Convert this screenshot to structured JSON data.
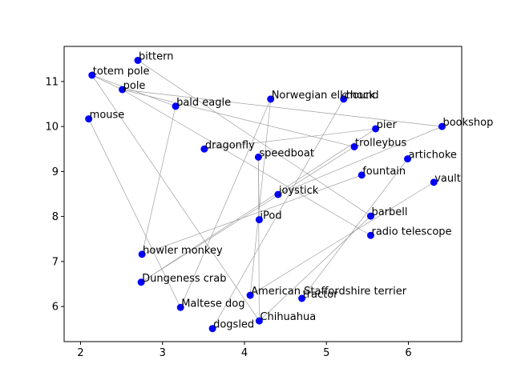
{
  "chart_data": {
    "type": "scatter",
    "title": "",
    "xlabel": "",
    "ylabel": "",
    "xlim": [
      1.8,
      6.65
    ],
    "ylim": [
      5.22,
      11.78
    ],
    "xticks": [
      2,
      3,
      4,
      5,
      6
    ],
    "yticks": [
      6,
      7,
      8,
      9,
      10,
      11
    ],
    "grid": false,
    "point_color": "#0000ff",
    "edge_color": "#a0a0a0",
    "points": [
      {
        "label": "bittern",
        "x": 2.7,
        "y": 11.47
      },
      {
        "label": "totem pole",
        "x": 2.14,
        "y": 11.14
      },
      {
        "label": "pole",
        "x": 2.51,
        "y": 10.82
      },
      {
        "label": "bald eagle",
        "x": 3.16,
        "y": 10.45
      },
      {
        "label": "Norwegian elkhound",
        "x": 4.32,
        "y": 10.61
      },
      {
        "label": "chock",
        "x": 5.21,
        "y": 10.61
      },
      {
        "label": "mouse",
        "x": 2.1,
        "y": 10.17
      },
      {
        "label": "pier",
        "x": 5.6,
        "y": 9.95
      },
      {
        "label": "bookshop",
        "x": 6.41,
        "y": 10.0
      },
      {
        "label": "dragonfly",
        "x": 3.51,
        "y": 9.5
      },
      {
        "label": "trolleybus",
        "x": 5.34,
        "y": 9.55
      },
      {
        "label": "speedboat",
        "x": 4.17,
        "y": 9.32
      },
      {
        "label": "artichoke",
        "x": 5.99,
        "y": 9.28
      },
      {
        "label": "fountain",
        "x": 5.43,
        "y": 8.92
      },
      {
        "label": "vault",
        "x": 6.31,
        "y": 8.76
      },
      {
        "label": "joystick",
        "x": 4.41,
        "y": 8.49
      },
      {
        "label": "iPod",
        "x": 4.18,
        "y": 7.93
      },
      {
        "label": "barbell",
        "x": 5.54,
        "y": 8.01
      },
      {
        "label": "radio telescope",
        "x": 5.54,
        "y": 7.58
      },
      {
        "label": "howler monkey",
        "x": 2.75,
        "y": 7.16
      },
      {
        "label": "Dungeness crab",
        "x": 2.74,
        "y": 6.54
      },
      {
        "label": "American Staffordshire terrier",
        "x": 4.07,
        "y": 6.25
      },
      {
        "label": "tractor",
        "x": 4.7,
        "y": 6.18
      },
      {
        "label": "Maltese dog",
        "x": 3.22,
        "y": 5.98
      },
      {
        "label": "Chihuahua",
        "x": 4.18,
        "y": 5.68
      },
      {
        "label": "dogsled",
        "x": 3.61,
        "y": 5.51
      }
    ],
    "edges": [
      [
        "bittern",
        "barbell"
      ],
      [
        "totem pole",
        "pole"
      ],
      [
        "totem pole",
        "Chihuahua"
      ],
      [
        "totem pole",
        "bald eagle"
      ],
      [
        "pole",
        "bookshop"
      ],
      [
        "pole",
        "trolleybus"
      ],
      [
        "pole",
        "radio telescope"
      ],
      [
        "bald eagle",
        "howler monkey"
      ],
      [
        "Norwegian elkhound",
        "Maltese dog"
      ],
      [
        "Norwegian elkhound",
        "American Staffordshire terrier"
      ],
      [
        "chock",
        "dogsled"
      ],
      [
        "mouse",
        "Maltese dog"
      ],
      [
        "pier",
        "Dungeness crab"
      ],
      [
        "trolleybus",
        "Dungeness crab"
      ],
      [
        "bookshop",
        "joystick"
      ],
      [
        "artichoke",
        "tractor"
      ],
      [
        "fountain",
        "howler monkey"
      ],
      [
        "vault",
        "American Staffordshire terrier"
      ],
      [
        "speedboat",
        "iPod"
      ],
      [
        "dragonfly",
        "pier"
      ],
      [
        "barbell",
        "Chihuahua"
      ],
      [
        "speedboat",
        "Chihuahua"
      ]
    ]
  }
}
